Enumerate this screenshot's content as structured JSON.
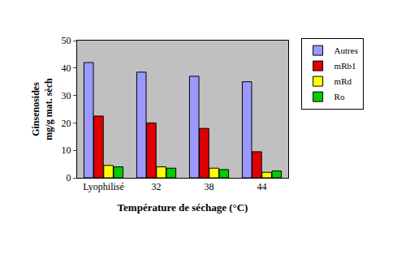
{
  "chart_data": {
    "type": "bar",
    "x_label": "Température de séchage (°C)",
    "y_label": "Ginsenosides\nmg/g mat. sèch",
    "categories": [
      "Lyophilisé",
      "32",
      "38",
      "44"
    ],
    "series": [
      {
        "name": "Autres",
        "color": "#9999ff",
        "values": [
          42,
          38.5,
          37,
          35
        ]
      },
      {
        "name": "mRb1",
        "color": "#e00000",
        "values": [
          22.5,
          20,
          18,
          9.5
        ]
      },
      {
        "name": "mRd",
        "color": "#ffff00",
        "values": [
          4.5,
          4,
          3.5,
          2
        ]
      },
      {
        "name": "Ro",
        "color": "#00cc00",
        "values": [
          4,
          3.5,
          3,
          2.5
        ]
      }
    ],
    "ylim": [
      0,
      50
    ],
    "yticks": [
      0,
      10,
      20,
      30,
      40,
      50
    ],
    "grid": false,
    "legend": "right"
  }
}
